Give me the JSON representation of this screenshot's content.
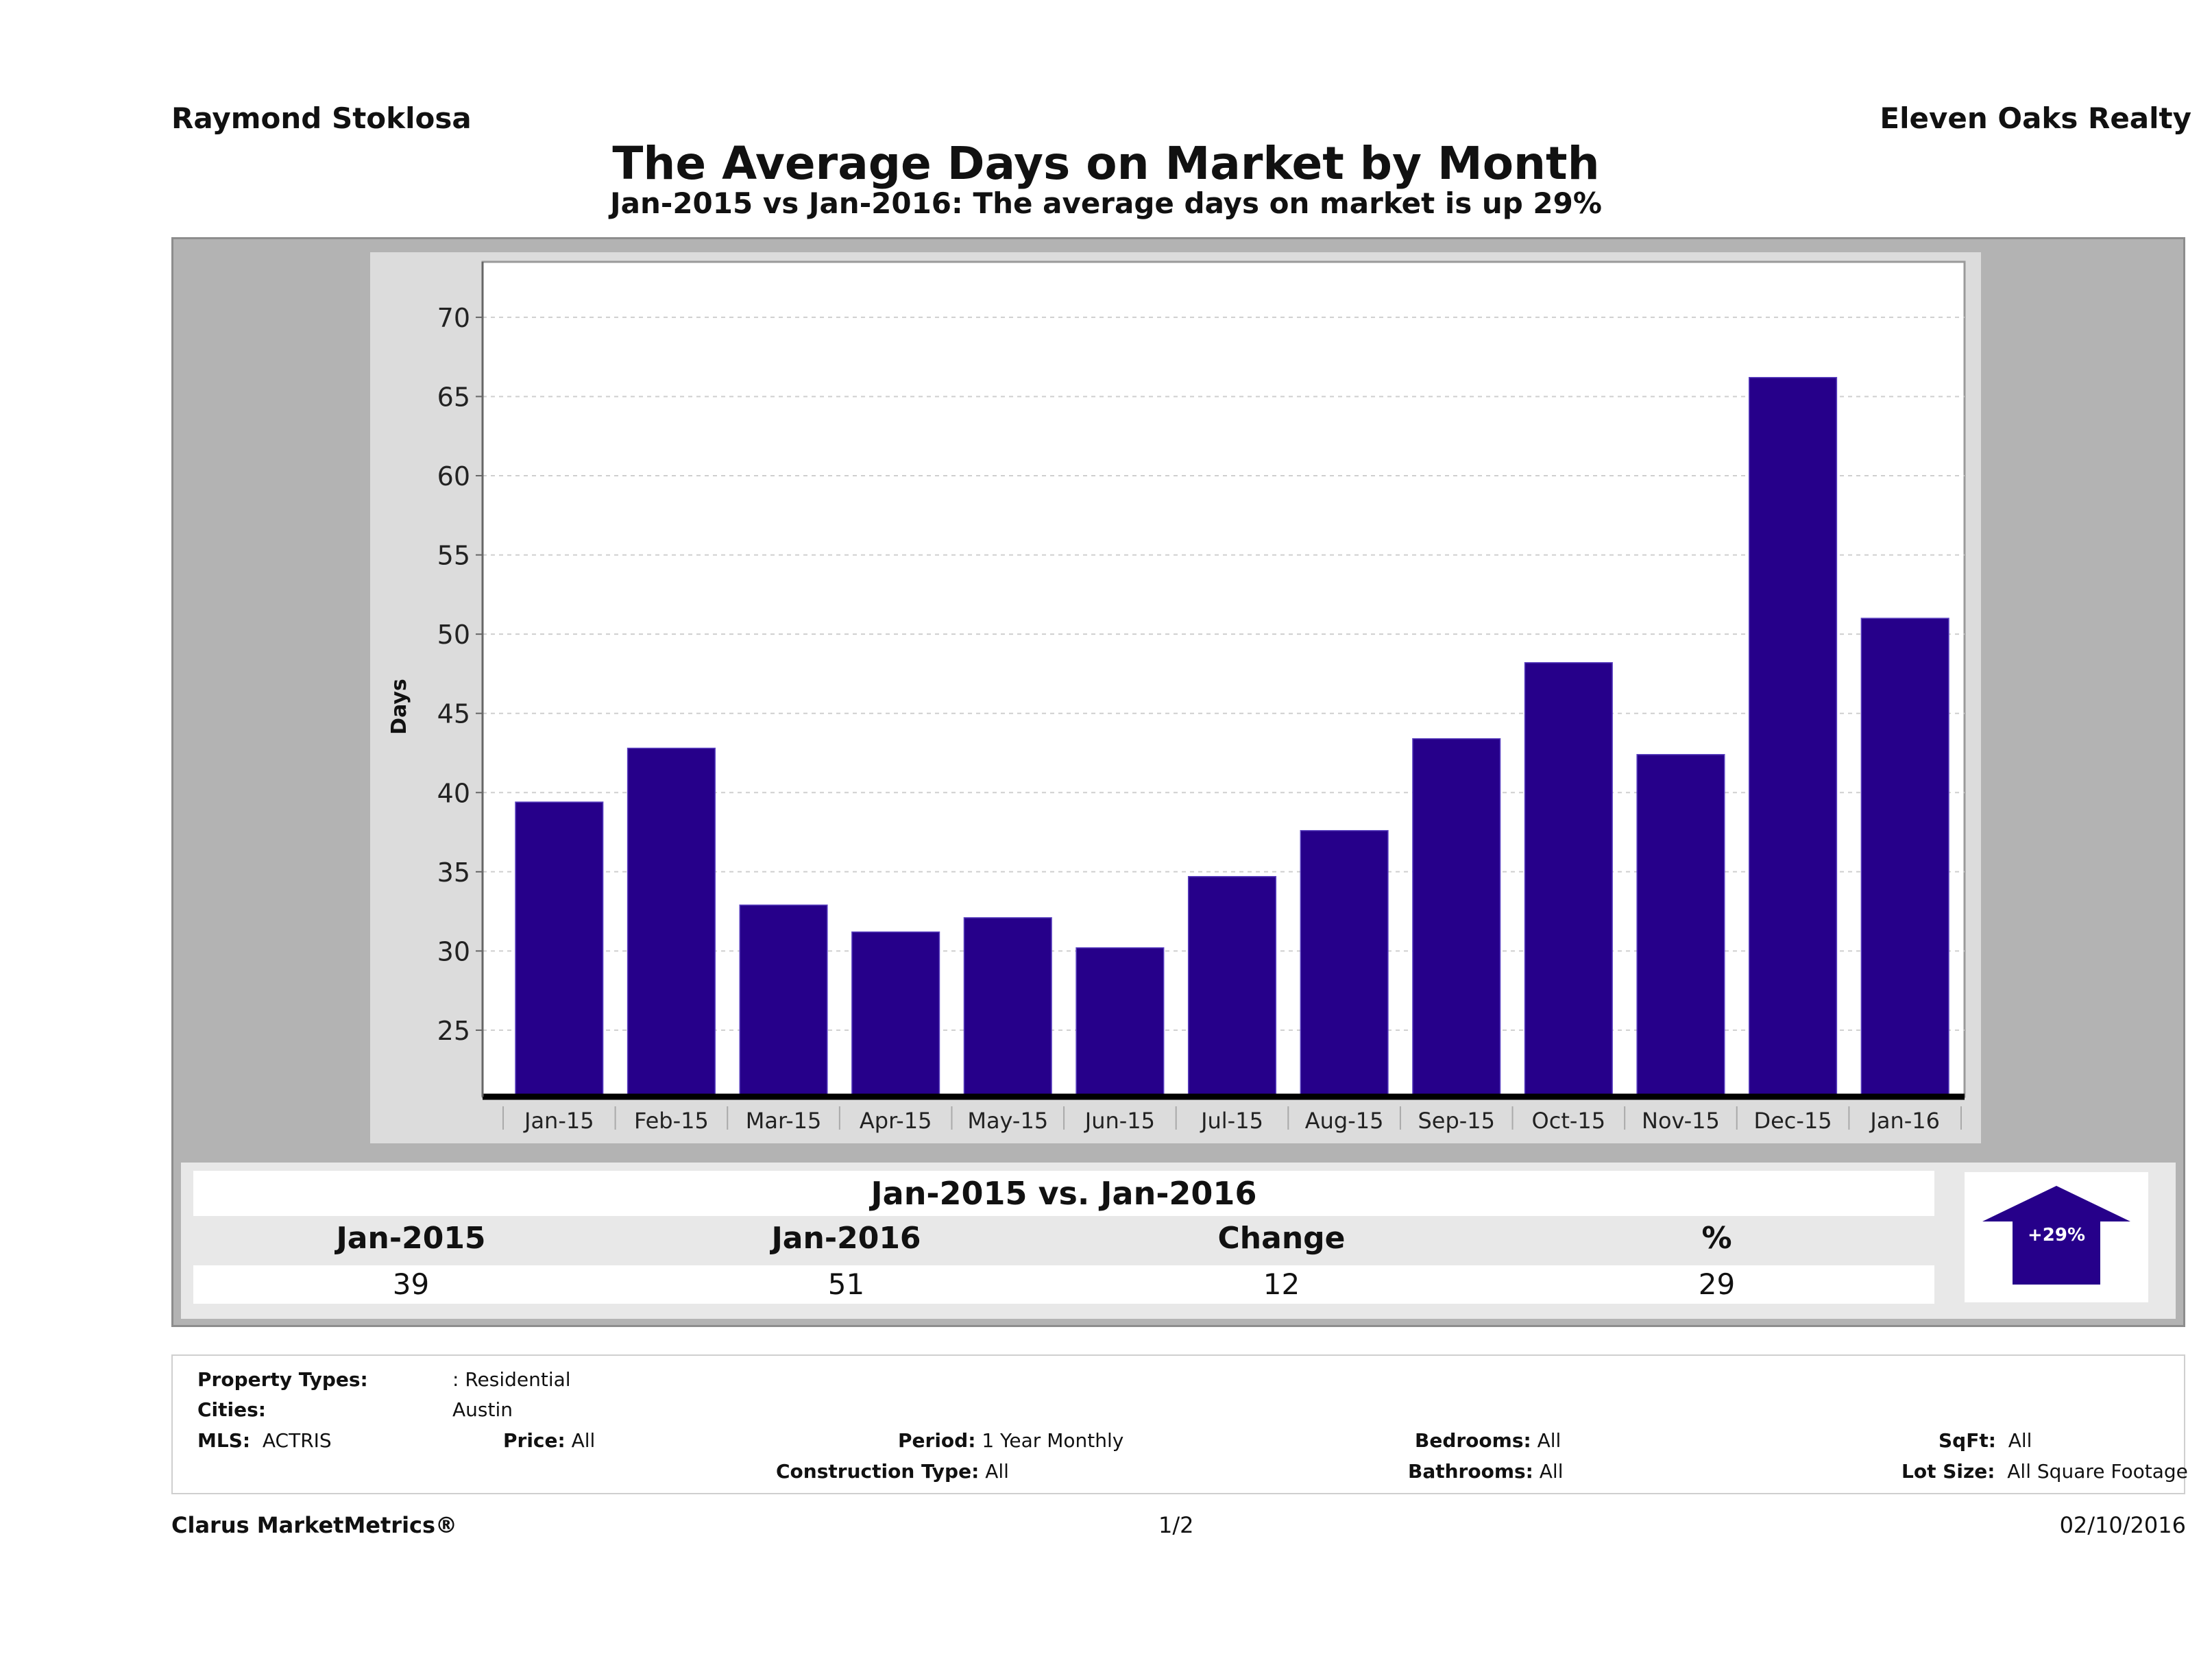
{
  "header": {
    "agent": "Raymond Stoklosa",
    "company": "Eleven Oaks Realty",
    "title": "The Average Days on Market by Month",
    "subtitle": "Jan-2015 vs Jan-2016: The average days on market is up 29%"
  },
  "chart_data": {
    "type": "bar",
    "title": "The Average Days on Market by Month",
    "xlabel": "",
    "ylabel": "Days",
    "categories": [
      "Jan-15",
      "Feb-15",
      "Mar-15",
      "Apr-15",
      "May-15",
      "Jun-15",
      "Jul-15",
      "Aug-15",
      "Sep-15",
      "Oct-15",
      "Nov-15",
      "Dec-15",
      "Jan-16"
    ],
    "values": [
      39.4,
      42.8,
      32.9,
      31.2,
      32.1,
      30.2,
      34.7,
      37.6,
      43.4,
      48.2,
      42.4,
      66.2,
      51.0
    ],
    "ylim": [
      20.8,
      73.5
    ],
    "yticks": [
      25,
      30,
      35,
      40,
      45,
      50,
      55,
      60,
      65,
      70
    ],
    "grid": true,
    "bar_color": "#26008a"
  },
  "comparison": {
    "title": "Jan-2015 vs. Jan-2016",
    "headers": [
      "Jan-2015",
      "Jan-2016",
      "Change",
      "%"
    ],
    "values": [
      "39",
      "51",
      "12",
      "29"
    ],
    "badge": "+29%",
    "badge_color": "#26008a"
  },
  "filters": {
    "property_types_label": "Property Types:",
    "property_types_value": ": Residential",
    "cities_label": "Cities:",
    "cities_value": "Austin",
    "mls_label": "MLS:",
    "mls_value": "ACTRIS",
    "price_label": "Price:",
    "price_value": "All",
    "period_label": "Period:",
    "period_value": "1 Year Monthly",
    "construction_label": "Construction Type:",
    "construction_value": "All",
    "bedrooms_label": "Bedrooms:",
    "bedrooms_value": "All",
    "bathrooms_label": "Bathrooms:",
    "bathrooms_value": "All",
    "sqft_label": "SqFt:",
    "sqft_value": "All",
    "lotsize_label": "Lot Size:",
    "lotsize_value": "All Square Footage"
  },
  "footer": {
    "brand": "Clarus MarketMetrics®",
    "page": "1/2",
    "date": "02/10/2016"
  }
}
